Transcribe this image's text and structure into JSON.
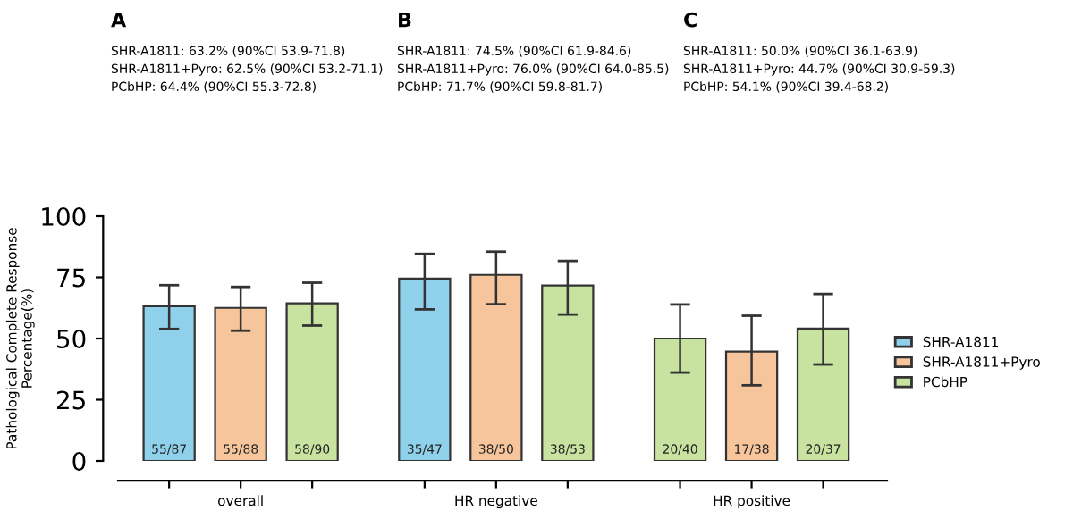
{
  "chart_data": {
    "type": "bar",
    "ylabel": "Pathological Complete Response\nPercentage(%)",
    "categories": [
      "overall",
      "HR negative",
      "HR positive"
    ],
    "series": [
      {
        "name": "SHR-A1811",
        "color": "#8fd0ea",
        "colors": [
          "#8fd0ea",
          "#8fd0ea",
          "#c8e2a0"
        ],
        "values": [
          63.2,
          74.5,
          50.0
        ],
        "errors": [
          [
            53.9,
            71.8
          ],
          [
            61.9,
            84.6
          ],
          [
            36.1,
            63.9
          ]
        ],
        "value_labels": [
          "55/87",
          "35/47",
          "20/40"
        ]
      },
      {
        "name": "SHR-A1811+Pyro",
        "color": "#f7c59b",
        "values": [
          62.5,
          76.0,
          44.7
        ],
        "errors": [
          [
            53.2,
            71.1
          ],
          [
            64.0,
            85.5
          ],
          [
            30.9,
            59.3
          ]
        ],
        "value_labels": [
          "55/88",
          "38/50",
          "17/38"
        ]
      },
      {
        "name": "PCbHP",
        "color": "#c8e2a0",
        "values": [
          64.4,
          71.7,
          54.1
        ],
        "errors": [
          [
            55.3,
            72.8
          ],
          [
            59.8,
            81.7
          ],
          [
            39.4,
            68.2
          ]
        ],
        "value_labels": [
          "58/90",
          "38/53",
          "20/37"
        ]
      }
    ],
    "ylim": [
      0,
      100
    ],
    "yticks": [
      0,
      25,
      50,
      75,
      100
    ],
    "grid": false,
    "legend": "right",
    "annotations": [
      "A",
      "SHR-A1811: 63.2% (90%CI 53.9-71.8)",
      "SHR-A1811+Pyro: 62.5% (90%CI 53.2-71.1)",
      "PCbHP: 64.4% (90%CI 55.3-72.8)",
      "B",
      "SHR-A1811: 74.5% (90%CI 61.9-84.6)",
      "SHR-A1811+Pyro: 76.0% (90%CI 64.0-85.5)",
      "PCbHP: 71.7% (90%CI 59.8-81.7)",
      "C",
      "SHR-A1811: 50.0% (90%CI 36.1-63.9)",
      "SHR-A1811+Pyro: 44.7% (90%CI 30.9-59.3)",
      "PCbHP: 54.1% (90%CI 39.4-68.2)"
    ]
  }
}
